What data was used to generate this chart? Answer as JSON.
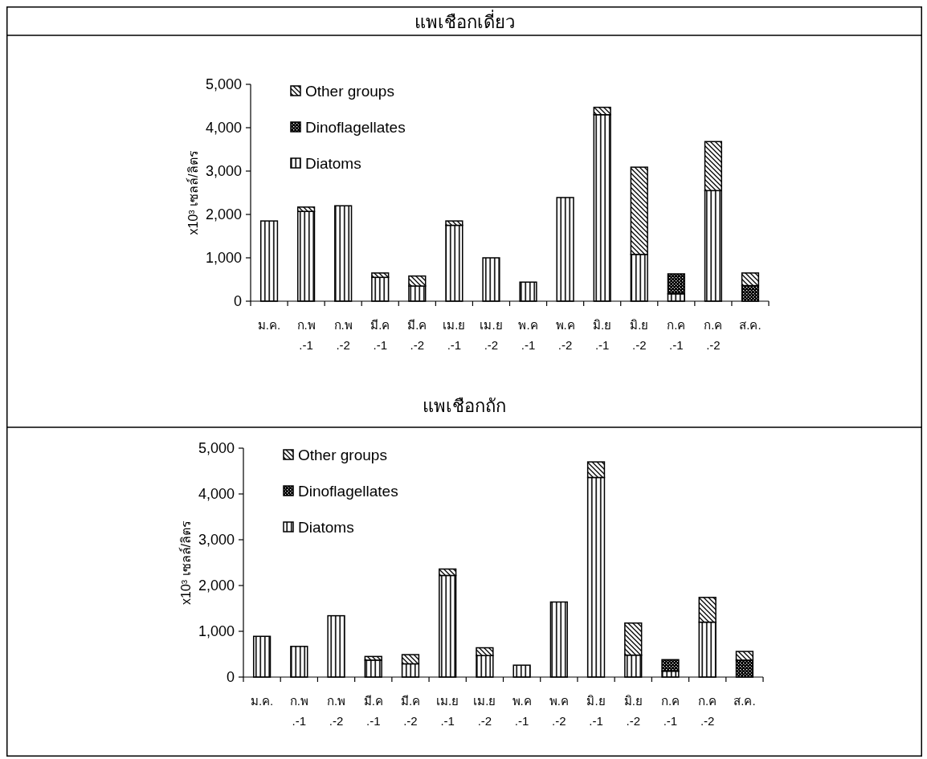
{
  "chart_data": [
    {
      "type": "bar",
      "title": "แพเชือกเดี่ยว",
      "ylabel": "x10³ เซลล์/ลิตร",
      "stacked": true,
      "legend": "top left",
      "categories": [
        "ม.ค.",
        "ก.พ.-1",
        "ก.พ.-2",
        "มี.ค.-1",
        "มี.ค.-2",
        "เม.ย.-1",
        "เม.ย.-2",
        "พ.ค.-1",
        "พ.ค.-2",
        "มิ.ย.-1",
        "มิ.ย.-2",
        "ก.ค.-1",
        "ก.ค.-2",
        "ส.ค."
      ],
      "series": [
        {
          "name": "Diatoms",
          "color": "#000000",
          "values": [
            1850,
            2070,
            2200,
            550,
            350,
            1750,
            1000,
            440,
            2390,
            4300,
            1080,
            170,
            2550,
            0
          ]
        },
        {
          "name": "Dinoflagellates",
          "color": "#000000",
          "values": [
            0,
            0,
            0,
            0,
            0,
            0,
            0,
            0,
            0,
            0,
            0,
            460,
            0,
            360
          ]
        },
        {
          "name": "Other groups",
          "color": "#000000",
          "values": [
            0,
            100,
            0,
            100,
            230,
            100,
            0,
            0,
            0,
            170,
            2010,
            0,
            1130,
            290
          ]
        }
      ],
      "ylim": [
        0,
        5000
      ],
      "yticks": [
        0,
        {
          "value": 1000,
          "label": "1,000"
        },
        {
          "value": 2000,
          "label": "2,000"
        },
        {
          "value": 3000,
          "label": "3,000"
        },
        {
          "value": 4000,
          "label": "4,000"
        },
        {
          "value": 5000,
          "label": "5,000"
        }
      ]
    },
    {
      "type": "bar",
      "title": "แพเชือกถัก",
      "ylabel": "x10³ เซลล์/ลิตร",
      "stacked": true,
      "legend": "top left",
      "categories": [
        "ม.ค.",
        "ก.พ.-1",
        "ก.พ.-2",
        "มี.ค.-1",
        "มี.ค.-2",
        "เม.ย.-1",
        "เม.ย.-2",
        "พ.ค.-1",
        "พ.ค.-2",
        "มิ.ย.-1",
        "มิ.ย.-2",
        "ก.ค.-1",
        "ก.ค.-2",
        "ส.ค."
      ],
      "series": [
        {
          "name": "Diatoms",
          "color": "#000000",
          "values": [
            890,
            670,
            1340,
            370,
            290,
            2220,
            470,
            260,
            1640,
            4360,
            480,
            130,
            1200,
            0
          ]
        },
        {
          "name": "Dinoflagellates",
          "color": "#000000",
          "values": [
            0,
            0,
            0,
            0,
            0,
            0,
            0,
            0,
            0,
            0,
            0,
            250,
            0,
            370
          ]
        },
        {
          "name": "Other groups",
          "color": "#000000",
          "values": [
            0,
            0,
            0,
            80,
            200,
            140,
            170,
            0,
            0,
            340,
            700,
            0,
            540,
            190
          ]
        }
      ],
      "ylim": [
        0,
        5000
      ],
      "yticks": [
        0,
        {
          "value": 1000,
          "label": "1,000"
        },
        {
          "value": 2000,
          "label": "2,000"
        },
        {
          "value": 3000,
          "label": "3,000"
        },
        {
          "value": 4000,
          "label": "4,000"
        },
        {
          "value": 5000,
          "label": "5,000"
        }
      ]
    }
  ]
}
